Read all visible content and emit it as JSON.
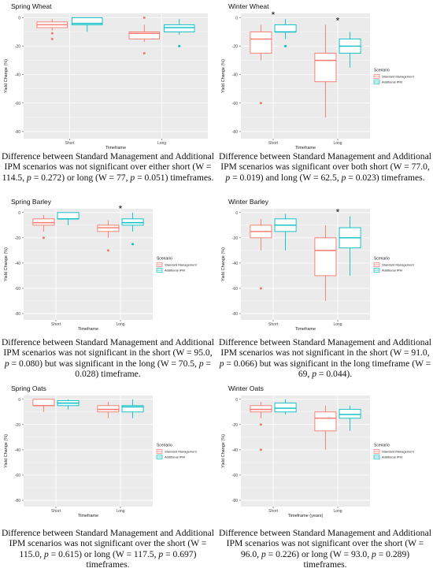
{
  "colors": {
    "standard": "#f8766d",
    "ipm": "#00bfc4",
    "panel_bg": "#ebebeb",
    "grid": "#ffffff"
  },
  "chart_data": [
    {
      "type": "box",
      "title": "Spring Wheat",
      "xlabel": "Timeframe",
      "ylabel": "Yield Change (%)",
      "ylim": [
        -85,
        3
      ],
      "yticks": [
        0,
        -20,
        -40,
        -60,
        -80
      ],
      "categories": [
        "Short",
        "Long"
      ],
      "legend": null,
      "series": [
        {
          "name": "Standard Management",
          "boxes": [
            {
              "whisker_low": -9,
              "q1": -7,
              "median": -5,
              "q3": -3,
              "whisker_high": -1,
              "outliers": [
                -11,
                -15
              ]
            },
            {
              "whisker_low": -17,
              "q1": -15,
              "median": -11,
              "q3": -10,
              "whisker_high": -5,
              "outliers": [
                0,
                -25
              ]
            }
          ]
        },
        {
          "name": "Additional IPM",
          "boxes": [
            {
              "whisker_low": -10,
              "q1": -5,
              "median": -4,
              "q3": 0,
              "whisker_high": 0,
              "outliers": []
            },
            {
              "whisker_low": -12,
              "q1": -10,
              "median": -7,
              "q3": -5,
              "whisker_high": -1,
              "outliers": [
                -20
              ]
            }
          ]
        }
      ],
      "significance": []
    },
    {
      "type": "box",
      "title": "Winter Wheat",
      "xlabel": "Timeframe",
      "ylabel": "Yield Change (%)",
      "ylim": [
        -85,
        3
      ],
      "yticks": [
        0,
        -20,
        -40,
        -60,
        -80
      ],
      "categories": [
        "Short",
        "Long"
      ],
      "legend": {
        "title": "Scenario",
        "entries": [
          "Standard Management",
          "Additional IPM"
        ]
      },
      "series": [
        {
          "name": "Standard Management",
          "boxes": [
            {
              "whisker_low": -30,
              "q1": -25,
              "median": -15,
              "q3": -10,
              "whisker_high": -5,
              "outliers": [
                -60
              ]
            },
            {
              "whisker_low": -70,
              "q1": -45,
              "median": -30,
              "q3": -25,
              "whisker_high": -5,
              "outliers": []
            }
          ]
        },
        {
          "name": "Additional IPM",
          "boxes": [
            {
              "whisker_low": -15,
              "q1": -10,
              "median": -10,
              "q3": -5,
              "whisker_high": -1,
              "outliers": [
                -20
              ]
            },
            {
              "whisker_low": -35,
              "q1": -25,
              "median": -20,
              "q3": -15,
              "whisker_high": -10,
              "outliers": []
            }
          ]
        }
      ],
      "significance": [
        "*",
        "*"
      ]
    },
    {
      "type": "box",
      "title": "Spring Barley",
      "xlabel": "Timeframe",
      "ylabel": "Yield Change (%)",
      "ylim": [
        -85,
        3
      ],
      "yticks": [
        0,
        -20,
        -40,
        -60,
        -80
      ],
      "categories": [
        "Short",
        "Long"
      ],
      "legend": {
        "title": "Scenario",
        "entries": [
          "Standard Management",
          "Additional IPM"
        ]
      },
      "series": [
        {
          "name": "Standard Management",
          "boxes": [
            {
              "whisker_low": -15,
              "q1": -10,
              "median": -8,
              "q3": -5,
              "whisker_high": -2,
              "outliers": [
                -20
              ]
            },
            {
              "whisker_low": -20,
              "q1": -15,
              "median": -12,
              "q3": -10,
              "whisker_high": -6,
              "outliers": [
                -30
              ]
            }
          ]
        },
        {
          "name": "Additional IPM",
          "boxes": [
            {
              "whisker_low": -10,
              "q1": -5,
              "median": -5,
              "q3": 0,
              "whisker_high": 0,
              "outliers": []
            },
            {
              "whisker_low": -15,
              "q1": -10,
              "median": -8,
              "q3": -5,
              "whisker_high": 0,
              "outliers": [
                -25
              ]
            }
          ]
        }
      ],
      "significance": [
        "",
        "*"
      ]
    },
    {
      "type": "box",
      "title": "Winter Barley",
      "xlabel": "Timeframe",
      "ylabel": "Yield Change (%)",
      "ylim": [
        -85,
        3
      ],
      "yticks": [
        0,
        -20,
        -40,
        -60,
        -80
      ],
      "categories": [
        "Short",
        "Long"
      ],
      "legend": {
        "title": "Scenario",
        "entries": [
          "Standard Management",
          "Additional IPM"
        ]
      },
      "series": [
        {
          "name": "Standard Management",
          "boxes": [
            {
              "whisker_low": -30,
              "q1": -20,
              "median": -15,
              "q3": -10,
              "whisker_high": -5,
              "outliers": [
                -60
              ]
            },
            {
              "whisker_low": -70,
              "q1": -50,
              "median": -30,
              "q3": -20,
              "whisker_high": -10,
              "outliers": []
            }
          ]
        },
        {
          "name": "Additional IPM",
          "boxes": [
            {
              "whisker_low": -30,
              "q1": -15,
              "median": -10,
              "q3": -5,
              "whisker_high": -1,
              "outliers": []
            },
            {
              "whisker_low": -50,
              "q1": -28,
              "median": -20,
              "q3": -12,
              "whisker_high": -3,
              "outliers": []
            }
          ]
        }
      ],
      "significance": [
        "",
        "*"
      ]
    },
    {
      "type": "box",
      "title": "Spring Oats",
      "xlabel": "Timeframe",
      "ylabel": "Yield Change (%)",
      "ylim": [
        -85,
        3
      ],
      "yticks": [
        0,
        -20,
        -40,
        -60,
        -80
      ],
      "categories": [
        "Short",
        "Long"
      ],
      "legend": {
        "title": "Scenario",
        "entries": [
          "Standard Management",
          "Additional IPM"
        ]
      },
      "series": [
        {
          "name": "Standard Management",
          "boxes": [
            {
              "whisker_low": -10,
              "q1": -5,
              "median": -5,
              "q3": 0,
              "whisker_high": 0,
              "outliers": []
            },
            {
              "whisker_low": -15,
              "q1": -10,
              "median": -8,
              "q3": -5,
              "whisker_high": -2,
              "outliers": []
            }
          ]
        },
        {
          "name": "Additional IPM",
          "boxes": [
            {
              "whisker_low": -8,
              "q1": -5,
              "median": -3,
              "q3": -1,
              "whisker_high": 0,
              "outliers": []
            },
            {
              "whisker_low": -15,
              "q1": -10,
              "median": -6,
              "q3": -5,
              "whisker_high": 0,
              "outliers": []
            }
          ]
        }
      ],
      "significance": []
    },
    {
      "type": "box",
      "title": "Winter Oats",
      "xlabel": "Timeframe (years)",
      "ylabel": "Yield Change (%)",
      "ylim": [
        -85,
        3
      ],
      "yticks": [
        0,
        -20,
        -40,
        -60,
        -80
      ],
      "categories": [
        "Short",
        "Long"
      ],
      "legend": {
        "title": "Scenario",
        "entries": [
          "Standard Management",
          "Additional IPM"
        ]
      },
      "series": [
        {
          "name": "Standard Management",
          "boxes": [
            {
              "whisker_low": -15,
              "q1": -10,
              "median": -8,
              "q3": -5,
              "whisker_high": -2,
              "outliers": [
                -20,
                -40
              ]
            },
            {
              "whisker_low": -40,
              "q1": -25,
              "median": -15,
              "q3": -10,
              "whisker_high": -5,
              "outliers": []
            }
          ]
        },
        {
          "name": "Additional IPM",
          "boxes": [
            {
              "whisker_low": -12,
              "q1": -10,
              "median": -7,
              "q3": -3,
              "whisker_high": 0,
              "outliers": []
            },
            {
              "whisker_low": -25,
              "q1": -15,
              "median": -12,
              "q3": -8,
              "whisker_high": -5,
              "outliers": []
            }
          ]
        }
      ],
      "significance": []
    }
  ],
  "captions": [
    {
      "lead": "Difference between Standard Management and Additional IPM scenarios was not significant over either short (W = 114.5, ",
      "p1": "p",
      "mid": " = 0.272) or long (W = 77, ",
      "p2": "p",
      "tail": " = 0.051) timeframes."
    },
    {
      "lead": "Difference between Standard Management and Additional IPM scenarios was significant over both short (W = 77.0, ",
      "p1": "p",
      "mid": " = 0.019) and long (W = 62.5, ",
      "p2": "p",
      "tail": " = 0.023) timeframes."
    },
    {
      "lead": "Difference between Standard Management and Additional IPM scenarios was not significant in the short (W = 95.0, ",
      "p1": "p",
      "mid": " = 0.080) but was significant in the long (W = 70.5, ",
      "p2": "p",
      "tail": " = 0.028) timeframe."
    },
    {
      "lead": "Difference between Standard Management and Additional IPM scenarios was not significant in the short (W = 91.0, ",
      "p1": "p",
      "mid": " = 0.066) but was significant in the long timeframe (W = 69, ",
      "p2": "p",
      "tail": " = 0.044)."
    },
    {
      "lead": "Difference between Standard Management and Additional IPM scenarios was not significant over the short (W = 115.0, ",
      "p1": "p",
      "mid": " = 0.615) or long (W = 117.5, ",
      "p2": "p",
      "tail": " = 0.697) timeframes."
    },
    {
      "lead": "Difference between Standard Management and Additional IPM scenarios was not significant over the short (W = 96.0, ",
      "p1": "p",
      "mid": " = 0.226) or long (W = 93.0, ",
      "p2": "p",
      "tail": " = 0.289) timeframes."
    }
  ]
}
